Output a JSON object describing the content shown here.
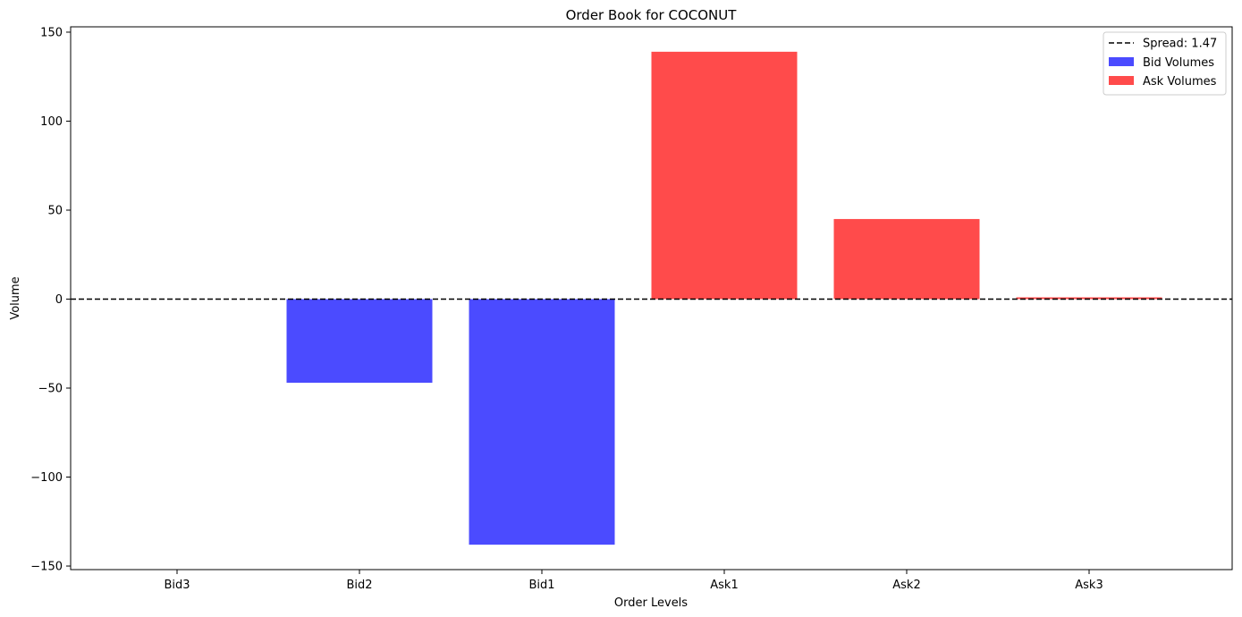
{
  "chart_data": {
    "type": "bar",
    "title": "Order Book for COCONUT",
    "xlabel": "Order Levels",
    "ylabel": "Volume",
    "categories": [
      "Bid3",
      "Bid2",
      "Bid1",
      "Ask1",
      "Ask2",
      "Ask3"
    ],
    "series": [
      {
        "name": "Bid Volumes",
        "color": "#4b4bff",
        "values": [
          0,
          -47,
          -138,
          null,
          null,
          null
        ]
      },
      {
        "name": "Ask Volumes",
        "color": "#ff4b4b",
        "values": [
          null,
          null,
          null,
          139,
          45,
          1
        ]
      }
    ],
    "reference_line": {
      "label": "Spread: 1.47",
      "y": 0,
      "style": "dashed",
      "color": "#000000"
    },
    "ylim": [
      -152,
      153
    ],
    "yticks": [
      -150,
      -100,
      -50,
      0,
      50,
      100,
      150
    ],
    "ytick_labels": [
      "−150",
      "−100",
      "−50",
      "0",
      "50",
      "100",
      "150"
    ],
    "grid": false,
    "legend_position": "top-right"
  }
}
